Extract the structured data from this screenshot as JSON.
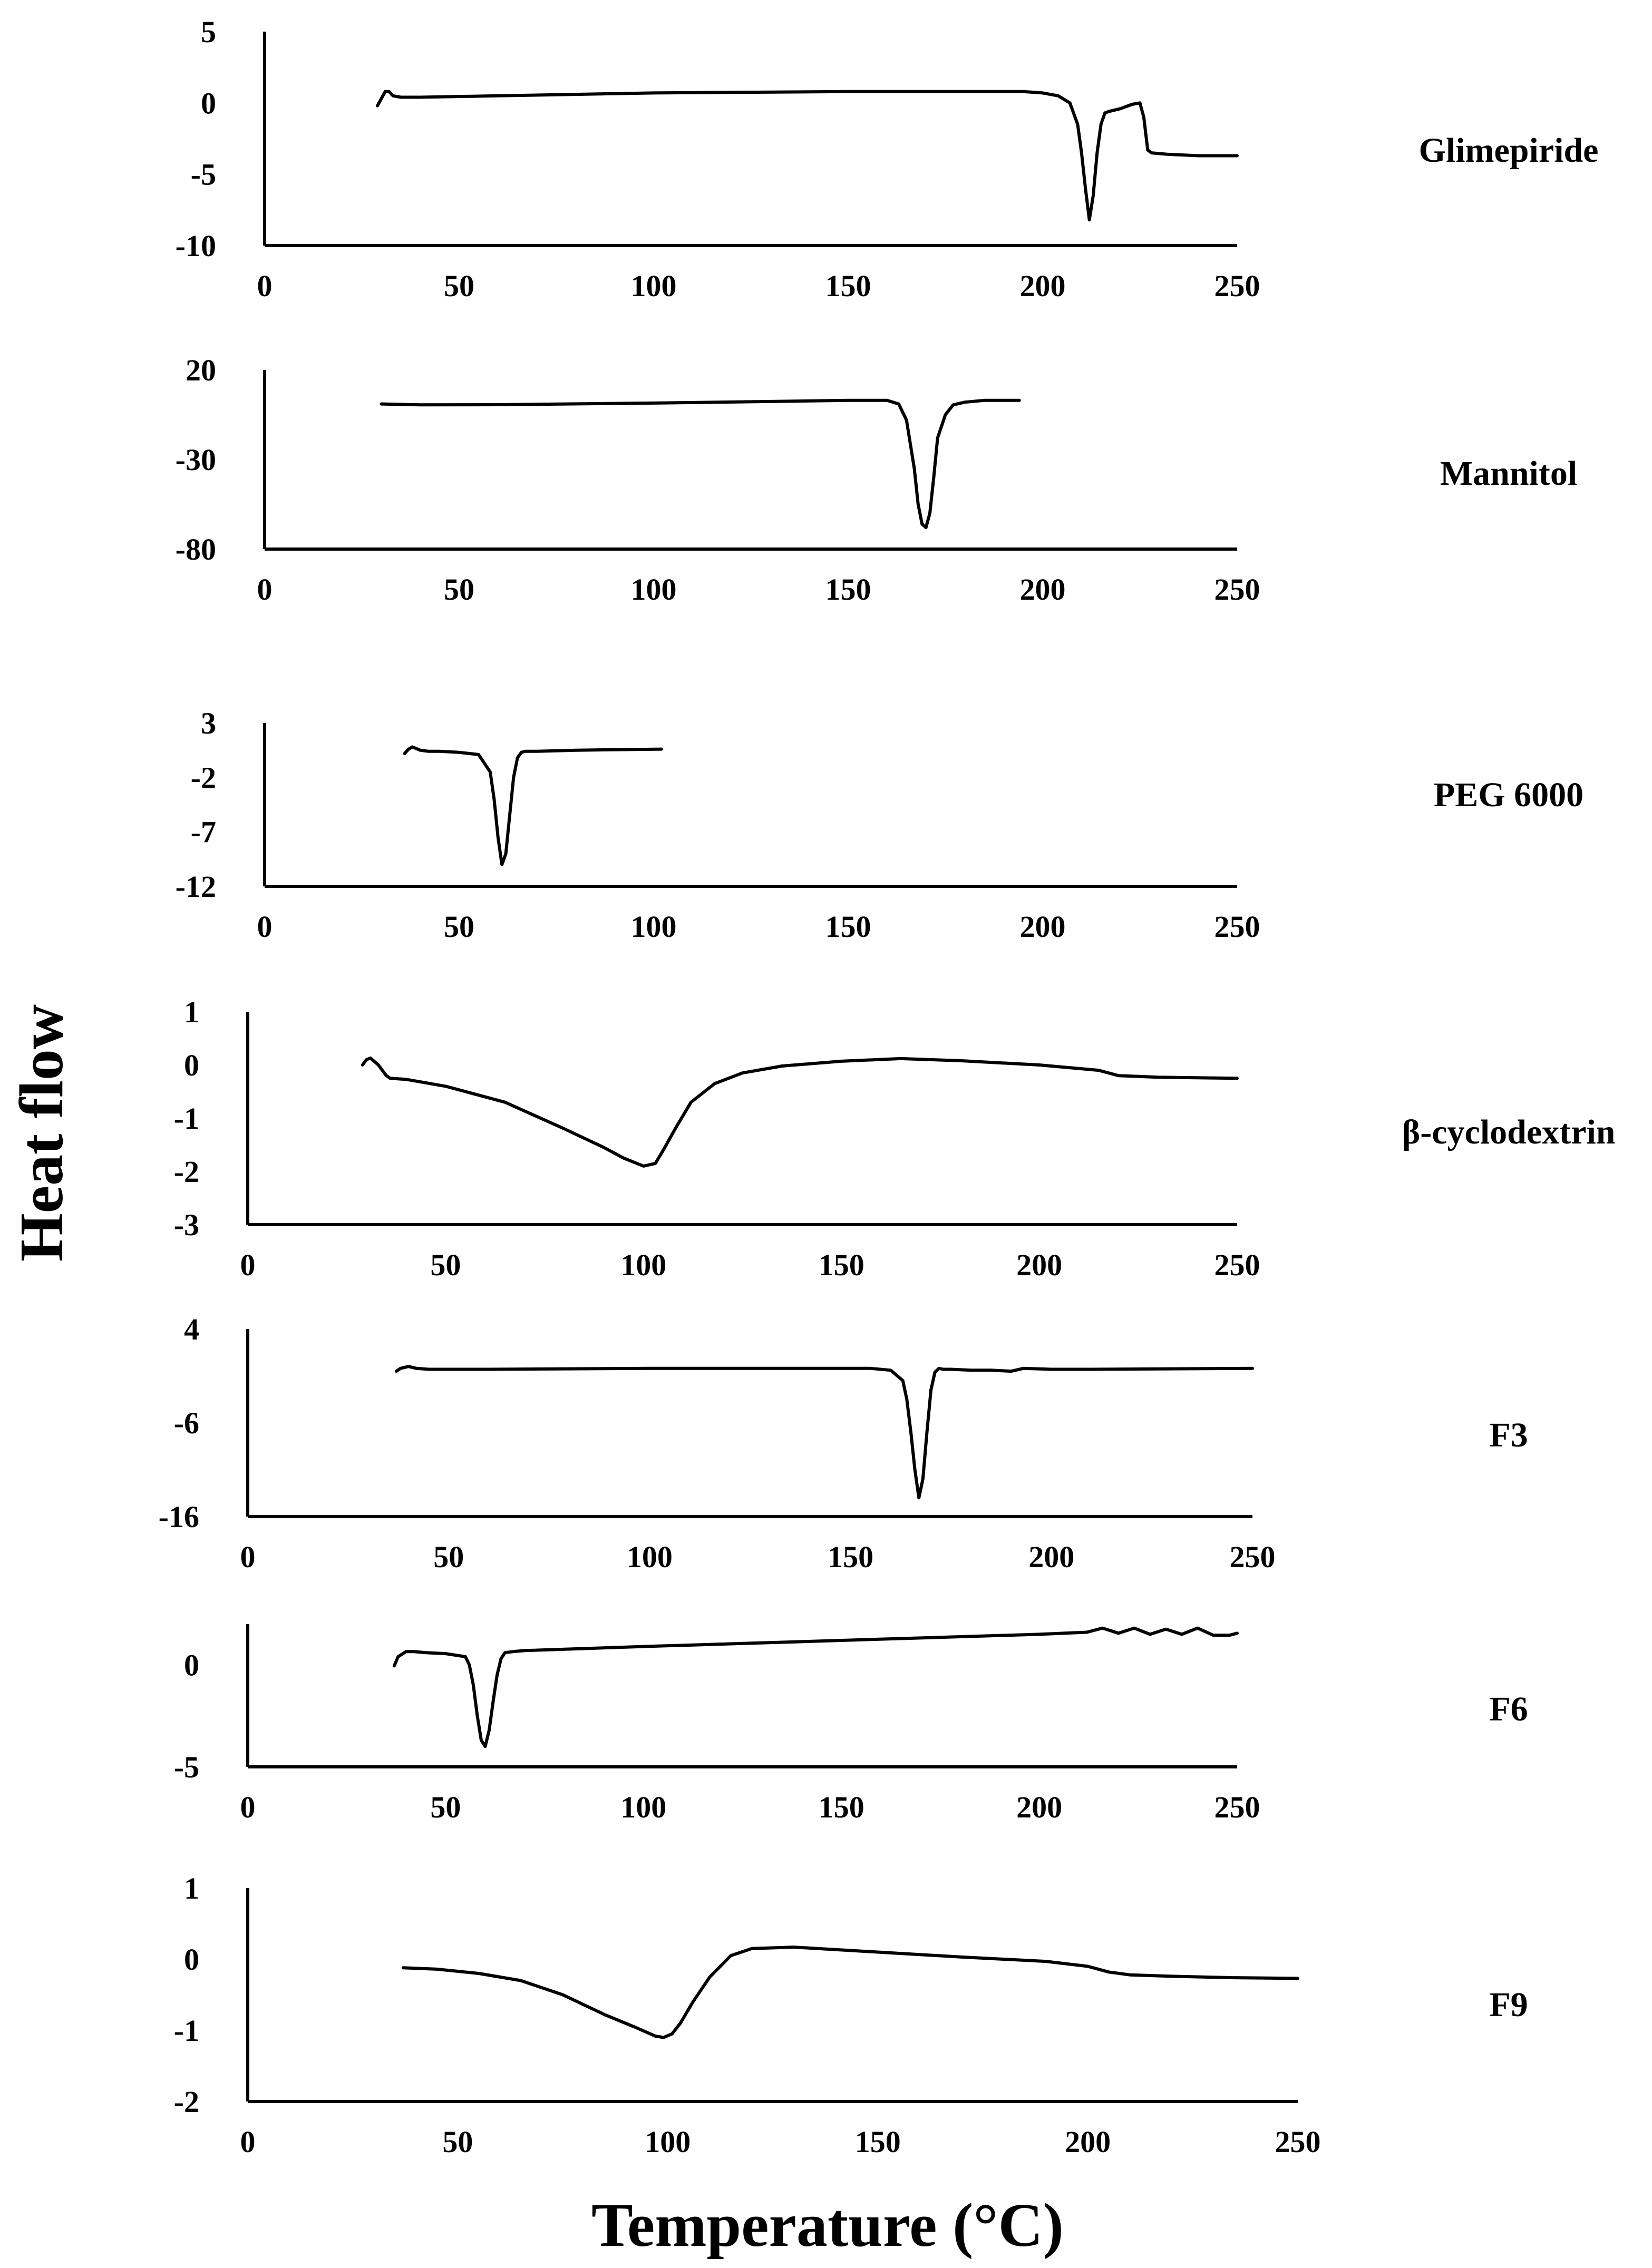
{
  "figure": {
    "y_title": "Heat flow",
    "x_title": "Temperature (°C)"
  },
  "chart_data": [
    {
      "type": "line",
      "title": "Glimepiride",
      "ylim": [
        -10,
        5
      ],
      "yticks": [
        "5",
        "0",
        "-5",
        "-10"
      ],
      "xlim": [
        0,
        250
      ],
      "xticks": [
        "0",
        "50",
        "100",
        "150",
        "200",
        "250"
      ],
      "series": [
        {
          "name": "Glimepiride",
          "x": [
            29,
            30,
            31,
            32,
            33,
            35,
            40,
            60,
            100,
            150,
            195,
            200,
            204,
            207,
            209,
            210,
            211,
            212,
            213,
            214,
            215,
            216,
            217,
            220,
            223,
            225,
            226,
            227,
            228,
            232,
            240,
            250
          ],
          "y": [
            -0.2,
            0.3,
            0.8,
            0.8,
            0.5,
            0.4,
            0.4,
            0.5,
            0.7,
            0.8,
            0.8,
            0.7,
            0.5,
            0,
            -1.5,
            -3.5,
            -6,
            -8.2,
            -6.5,
            -3.5,
            -1.5,
            -0.7,
            -0.6,
            -0.4,
            -0.1,
            0,
            -1,
            -3.3,
            -3.5,
            -3.6,
            -3.7,
            -3.7
          ]
        }
      ]
    },
    {
      "type": "line",
      "title": "Mannitol",
      "ylim": [
        -80,
        20
      ],
      "yticks": [
        "20",
        "-30",
        "-80"
      ],
      "xlim": [
        0,
        250
      ],
      "xticks": [
        "0",
        "50",
        "100",
        "150",
        "200",
        "250"
      ],
      "series": [
        {
          "name": "Mannitol",
          "x": [
            30,
            40,
            60,
            100,
            150,
            160,
            163,
            165,
            167,
            168,
            169,
            170,
            171,
            172,
            173,
            175,
            177,
            180,
            185,
            194
          ],
          "y": [
            1,
            0.5,
            0.6,
            1.5,
            3,
            3,
            1,
            -8,
            -35,
            -55,
            -66,
            -68,
            -60,
            -40,
            -18,
            -5,
            0.5,
            2,
            3,
            3
          ]
        }
      ]
    },
    {
      "type": "line",
      "title": "PEG 6000",
      "ylim": [
        -12,
        3
      ],
      "yticks": [
        "3",
        "-2",
        "-7",
        "-12"
      ],
      "xlim": [
        0,
        250
      ],
      "xticks": [
        "0",
        "50",
        "100",
        "150",
        "200",
        "250"
      ],
      "series": [
        {
          "name": "PEG 6000",
          "x": [
            36,
            37,
            38,
            40,
            42,
            45,
            50,
            55,
            58,
            59,
            60,
            61,
            62,
            63,
            64,
            65,
            66,
            67,
            70,
            80,
            102
          ],
          "y": [
            0.2,
            0.6,
            0.8,
            0.5,
            0.4,
            0.4,
            0.3,
            0.1,
            -1.5,
            -4,
            -7.5,
            -10,
            -9,
            -5.5,
            -2,
            -0.2,
            0.3,
            0.4,
            0.4,
            0.5,
            0.6
          ]
        }
      ]
    },
    {
      "type": "line",
      "title": "β-cyclodextrin",
      "ylim": [
        -3,
        1
      ],
      "yticks": [
        "1",
        "0",
        "-1",
        "-2",
        "-3"
      ],
      "xlim": [
        0,
        250
      ],
      "xticks": [
        "0",
        "50",
        "100",
        "150",
        "200",
        "250"
      ],
      "series": [
        {
          "name": "β-cyclodextrin",
          "x": [
            29,
            30,
            31,
            33,
            35,
            36,
            40,
            50,
            65,
            80,
            90,
            95,
            100,
            103,
            105,
            108,
            112,
            118,
            125,
            135,
            150,
            165,
            180,
            200,
            215,
            220,
            230,
            250
          ],
          "y": [
            0,
            0.1,
            0.13,
            0,
            -0.2,
            -0.25,
            -0.27,
            -0.4,
            -0.7,
            -1.2,
            -1.55,
            -1.75,
            -1.9,
            -1.85,
            -1.6,
            -1.2,
            -0.7,
            -0.35,
            -0.15,
            -0.02,
            0.07,
            0.12,
            0.08,
            0,
            -0.1,
            -0.2,
            -0.23,
            -0.25
          ]
        }
      ]
    },
    {
      "type": "line",
      "title": "F3",
      "ylim": [
        -16,
        4
      ],
      "yticks": [
        "4",
        "-6",
        "-16"
      ],
      "xlim": [
        0,
        250
      ],
      "xticks": [
        "0",
        "50",
        "100",
        "150",
        "200",
        "250"
      ],
      "series": [
        {
          "name": "F3",
          "x": [
            37,
            38,
            40,
            42,
            45,
            60,
            100,
            155,
            160,
            163,
            164,
            165,
            166,
            167,
            168,
            169,
            170,
            171,
            172,
            173,
            175,
            180,
            185,
            190,
            193,
            200,
            210,
            250
          ],
          "y": [
            -0.5,
            -0.2,
            0,
            -0.2,
            -0.3,
            -0.3,
            -0.2,
            -0.2,
            -0.4,
            -1.5,
            -3.5,
            -7,
            -11,
            -14,
            -12,
            -7,
            -2.5,
            -0.6,
            -0.2,
            -0.3,
            -0.3,
            -0.4,
            -0.4,
            -0.5,
            -0.2,
            -0.3,
            -0.3,
            -0.2
          ]
        }
      ]
    },
    {
      "type": "line",
      "title": "F6",
      "ylim": [
        -5,
        2
      ],
      "yticks": [
        "0",
        "-5"
      ],
      "xlim": [
        0,
        250
      ],
      "xticks": [
        "0",
        "50",
        "100",
        "150",
        "200",
        "250"
      ],
      "series": [
        {
          "name": "F6",
          "x": [
            37,
            38,
            40,
            42,
            45,
            50,
            55,
            56,
            57,
            58,
            59,
            60,
            61,
            62,
            63,
            64,
            65,
            67,
            70,
            100,
            150,
            200,
            212,
            216,
            220,
            224,
            228,
            232,
            236,
            240,
            244,
            248,
            250
          ],
          "y": [
            -0.05,
            0.4,
            0.65,
            0.65,
            0.6,
            0.55,
            0.4,
            0,
            -1,
            -2.5,
            -3.7,
            -4,
            -3.2,
            -1.8,
            -0.5,
            0.3,
            0.6,
            0.65,
            0.7,
            0.9,
            1.2,
            1.5,
            1.6,
            1.8,
            1.55,
            1.8,
            1.5,
            1.75,
            1.5,
            1.8,
            1.45,
            1.45,
            1.55
          ]
        }
      ]
    },
    {
      "type": "line",
      "title": "F9",
      "ylim": [
        -2,
        1
      ],
      "yticks": [
        "1",
        "0",
        "-1",
        "-2"
      ],
      "xlim": [
        0,
        250
      ],
      "xticks": [
        "0",
        "50",
        "100",
        "150",
        "200",
        "250"
      ],
      "series": [
        {
          "name": "F9",
          "x": [
            37,
            45,
            55,
            65,
            75,
            85,
            92,
            97,
            99,
            101,
            103,
            106,
            110,
            115,
            120,
            130,
            150,
            170,
            190,
            200,
            205,
            210,
            220,
            235,
            250
          ],
          "y": [
            -0.12,
            -0.14,
            -0.2,
            -0.3,
            -0.5,
            -0.78,
            -0.95,
            -1.08,
            -1.1,
            -1.05,
            -0.9,
            -0.6,
            -0.25,
            0.05,
            0.15,
            0.17,
            0.1,
            0.03,
            -0.03,
            -0.1,
            -0.18,
            -0.22,
            -0.24,
            -0.26,
            -0.27
          ]
        }
      ]
    }
  ]
}
